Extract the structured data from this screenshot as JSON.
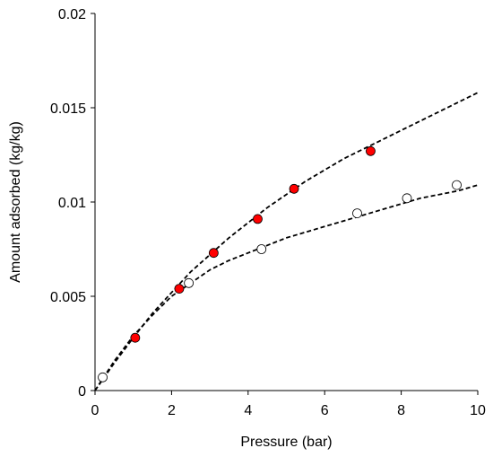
{
  "chart_data": {
    "type": "scatter",
    "title": "",
    "xlabel": "Pressure (bar)",
    "ylabel": "Amount  adsorbed (kg/kg)",
    "xlim": [
      0,
      10
    ],
    "ylim": [
      0,
      0.02
    ],
    "xticks": [
      0,
      2,
      4,
      6,
      8,
      10
    ],
    "xtick_labels": [
      "0",
      "2",
      "4",
      "6",
      "8",
      "10"
    ],
    "yticks": [
      0,
      0.005,
      0.01,
      0.015,
      0.02
    ],
    "ytick_labels": [
      "0",
      "0.005",
      "0.01",
      "0.015",
      "0.02"
    ],
    "grid": false,
    "legend": "none",
    "series": [
      {
        "marker": "filled-circle",
        "color": "#ff0000",
        "x": [
          1.05,
          2.2,
          3.1,
          4.25,
          5.2,
          7.2
        ],
        "y": [
          0.0028,
          0.0054,
          0.0073,
          0.0091,
          0.0107,
          0.0127
        ]
      },
      {
        "marker": "open-circle",
        "color": "#ffffff",
        "x": [
          0.2,
          2.45,
          4.35,
          6.85,
          8.15,
          9.45
        ],
        "y": [
          0.0007,
          0.0057,
          0.0075,
          0.0094,
          0.0102,
          0.0109
        ]
      }
    ],
    "fits": [
      {
        "style": "dashed",
        "color": "#000000",
        "x": [
          0,
          0.5,
          1,
          1.5,
          2,
          2.5,
          3,
          3.5,
          4,
          4.5,
          5,
          5.5,
          6,
          6.5,
          7,
          7.5,
          8,
          8.5,
          9,
          9.5,
          10
        ],
        "y": [
          0,
          0.00145,
          0.0028,
          0.0041,
          0.0052,
          0.0063,
          0.0072,
          0.0081,
          0.0089,
          0.0097,
          0.0104,
          0.0111,
          0.0117,
          0.0123,
          0.0128,
          0.0133,
          0.0138,
          0.0143,
          0.0148,
          0.0153,
          0.0158
        ]
      },
      {
        "style": "dashed",
        "color": "#000000",
        "x": [
          0,
          0.5,
          1,
          1.5,
          2,
          2.5,
          3,
          3.5,
          4,
          4.5,
          5,
          5.5,
          6,
          6.5,
          7,
          7.5,
          8,
          8.5,
          9,
          9.5,
          10
        ],
        "y": [
          0,
          0.00155,
          0.0029,
          0.004,
          0.005,
          0.0057,
          0.0064,
          0.0069,
          0.0073,
          0.0077,
          0.0081,
          0.0084,
          0.0087,
          0.009,
          0.0093,
          0.0096,
          0.0099,
          0.0102,
          0.0104,
          0.0106,
          0.0109
        ]
      }
    ]
  }
}
